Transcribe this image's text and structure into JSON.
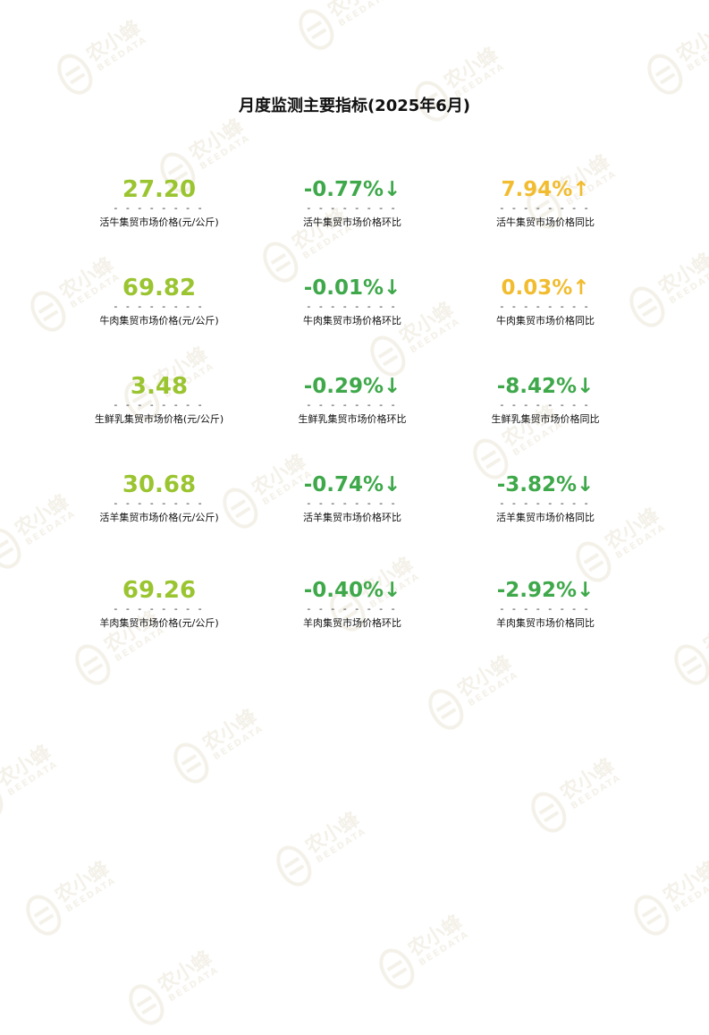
{
  "title": "月度监测主要指标(2025年6月)",
  "watermark": {
    "text": "农小蜂",
    "sub": "BEEDATA",
    "icon": "bee-logo-icon"
  },
  "colors": {
    "price": "#9ac430",
    "down": "#3ea84a",
    "up": "#f1bc2f"
  },
  "rows": [
    {
      "price": {
        "value": "27.20",
        "dash": "- - - - - - - -",
        "label": "活牛集贸市场价格(元/公斤)"
      },
      "mom": {
        "value": "-0.77%↓",
        "dash": "- - - - - - - -",
        "label": "活牛集贸市场价格环比"
      },
      "yoy": {
        "value": "7.94%↑",
        "dash": "- - - - - - - -",
        "label": "活牛集贸市场价格同比"
      }
    },
    {
      "price": {
        "value": "69.82",
        "dash": "- - - - - - - -",
        "label": "牛肉集贸市场价格(元/公斤)"
      },
      "mom": {
        "value": "-0.01%↓",
        "dash": "- - - - - - - -",
        "label": "牛肉集贸市场价格环比"
      },
      "yoy": {
        "value": "0.03%↑",
        "dash": "- - - - - - - -",
        "label": "牛肉集贸市场价格同比"
      }
    },
    {
      "price": {
        "value": "3.48",
        "dash": "- - - - - - - -",
        "label": "生鲜乳集贸市场价格(元/公斤)"
      },
      "mom": {
        "value": "-0.29%↓",
        "dash": "- - - - - - - -",
        "label": "生鲜乳集贸市场价格环比"
      },
      "yoy": {
        "value": "-8.42%↓",
        "dash": "- - - - - - - -",
        "label": "生鲜乳集贸市场价格同比"
      }
    },
    {
      "price": {
        "value": "30.68",
        "dash": "- - - - - - - -",
        "label": "活羊集贸市场价格(元/公斤)"
      },
      "mom": {
        "value": "-0.74%↓",
        "dash": "- - - - - - - -",
        "label": "活羊集贸市场价格环比"
      },
      "yoy": {
        "value": "-3.82%↓",
        "dash": "- - - - - - - -",
        "label": "活羊集贸市场价格同比"
      }
    },
    {
      "price": {
        "value": "69.26",
        "dash": "- - - - - - - -",
        "label": "羊肉集贸市场价格(元/公斤)"
      },
      "mom": {
        "value": "-0.40%↓",
        "dash": "- - - - - - - -",
        "label": "羊肉集贸市场价格环比"
      },
      "yoy": {
        "value": "-2.92%↓",
        "dash": "- - - - - - - -",
        "label": "羊肉集贸市场价格同比"
      }
    }
  ]
}
